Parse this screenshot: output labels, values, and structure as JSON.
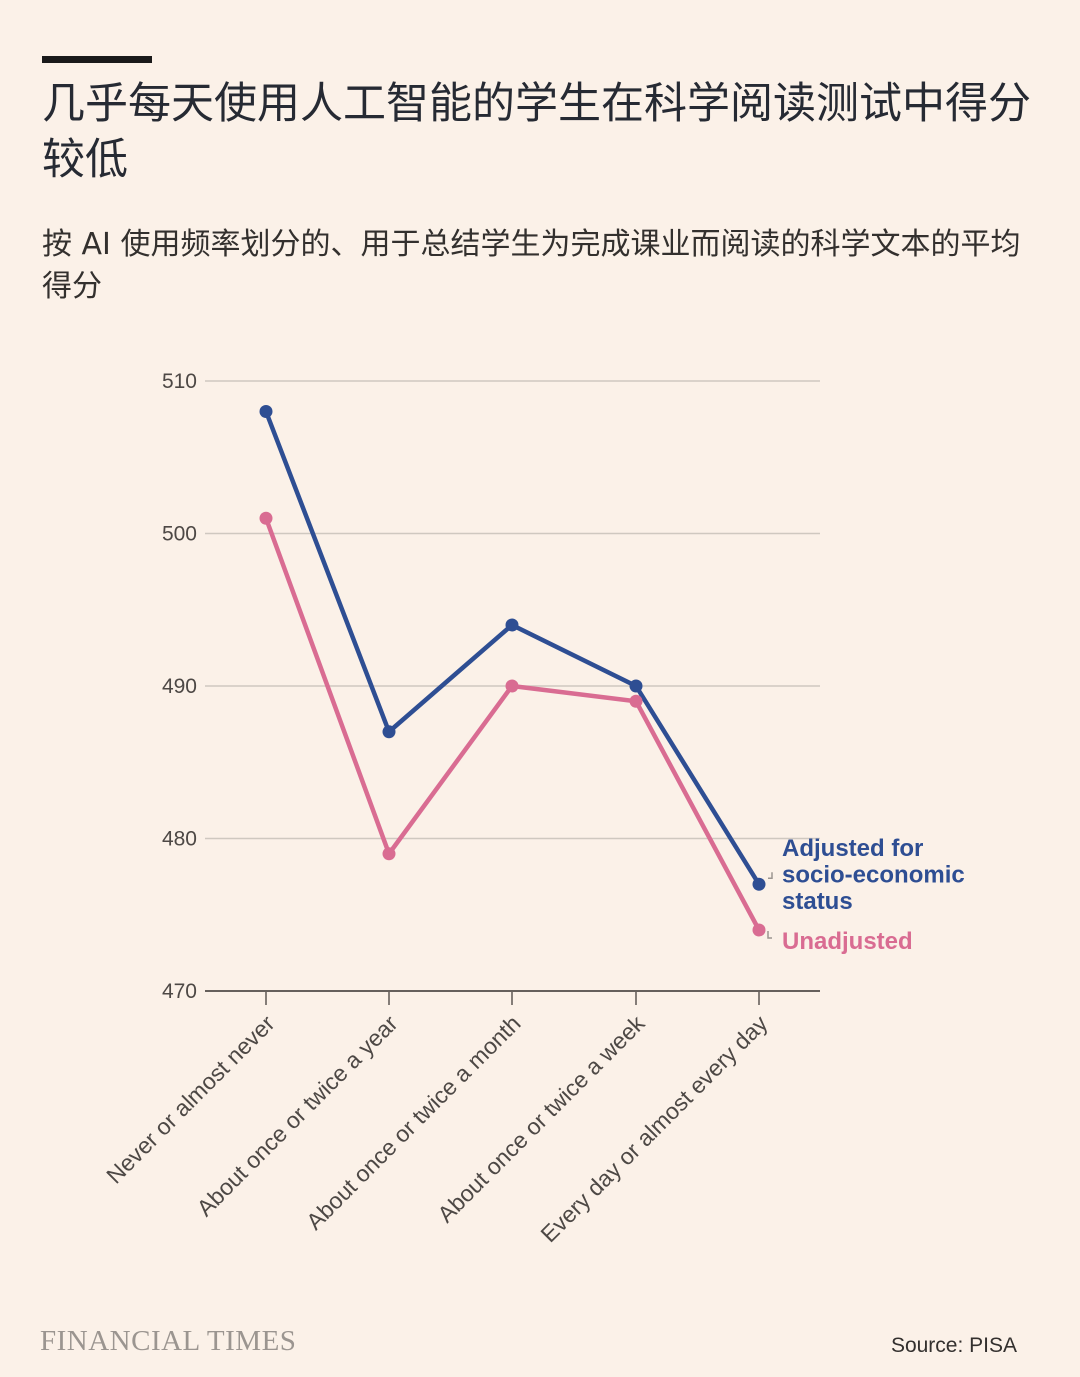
{
  "title": "几乎每天使用人工智能的学生在科学阅读测试中得分较低",
  "subtitle": "按 AI 使用频率划分的、用于总结学生为完成课业而阅读的科学文本的平均得分",
  "source": "Source: PISA",
  "brand": "FINANCIAL TIMES",
  "chart_data": {
    "type": "line",
    "categories": [
      "Never or almost never",
      "About once or twice a year",
      "About once or twice a month",
      "About once or twice a week",
      "Every day or almost every day"
    ],
    "ylim": [
      470,
      510
    ],
    "yticks": [
      510,
      500,
      490,
      480,
      470
    ],
    "grid": true,
    "series": [
      {
        "name": "Adjusted for socio-economic status",
        "label_lines": [
          "Adjusted for",
          "socio-economic",
          "status"
        ],
        "color": "#2E4E93",
        "values": [
          508,
          487,
          494,
          490,
          477
        ]
      },
      {
        "name": "Unadjusted",
        "label_lines": [
          "Unadjusted"
        ],
        "color": "#D96C92",
        "values": [
          501,
          479,
          490,
          489,
          474
        ]
      }
    ]
  }
}
